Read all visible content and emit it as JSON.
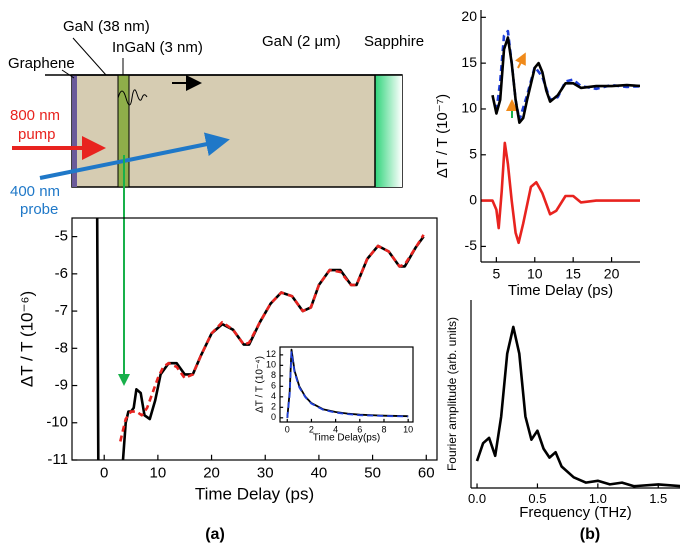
{
  "diagram": {
    "layer_labels": [
      "GaN (38 nm)",
      "InGaN (3 nm)",
      "GaN (2 μm)",
      "Sapphire",
      "Graphene"
    ],
    "pump": [
      "800 nm",
      "pump"
    ],
    "probe": [
      "400 nm",
      "probe"
    ]
  },
  "captions": {
    "a": "(a)",
    "b": "(b)"
  },
  "chart_data": [
    {
      "type": "line",
      "x_label": "Time Delay (ps)",
      "y_label": "ΔT / T (10⁻⁶)",
      "xlim": [
        -6,
        62
      ],
      "ylim": [
        -11,
        -4.5
      ],
      "xticks": [
        0,
        10,
        20,
        30,
        40,
        50,
        60
      ],
      "yticks": [
        -5,
        -6,
        -7,
        -8,
        -9,
        -10,
        -11
      ],
      "series": [
        {
          "color": "#000000",
          "dashed": false,
          "x": [
            -1.3,
            -1.1,
            2,
            3.5,
            4,
            4.5,
            5,
            5.5,
            6,
            6.8,
            7.5,
            8.5,
            9.5,
            10.5,
            12,
            13.5,
            15,
            16.5,
            18,
            20,
            22,
            24,
            26,
            27,
            29,
            31,
            33,
            35,
            37,
            38.5,
            40,
            42,
            44,
            46,
            47,
            49,
            51,
            53,
            55,
            56,
            58,
            59,
            59.5
          ],
          "values": [
            -4.5,
            -11,
            null,
            -11,
            -10.0,
            -9.7,
            -9.7,
            -9.6,
            -9.1,
            -9.2,
            -9.8,
            -9.9,
            -9.4,
            -8.7,
            -8.4,
            -8.4,
            -8.7,
            -8.7,
            -8.2,
            -7.6,
            -7.35,
            -7.5,
            -7.9,
            -7.9,
            -7.3,
            -6.8,
            -6.5,
            -6.6,
            -7.0,
            -6.9,
            -6.3,
            -5.9,
            -5.9,
            -6.3,
            -6.3,
            -5.6,
            -5.25,
            -5.4,
            -5.8,
            -5.8,
            -5.3,
            -5.1,
            -5.0
          ]
        },
        {
          "color": "#e8231f",
          "dashed": true,
          "x": [
            3,
            4,
            5,
            6,
            7,
            8,
            9,
            10,
            11,
            12,
            13.5,
            15,
            16.5,
            18,
            20,
            22,
            24,
            26,
            27,
            29,
            31,
            33,
            35,
            37,
            38.5,
            40,
            42,
            44,
            46,
            47,
            49,
            51,
            53,
            55,
            56,
            58,
            59.5
          ],
          "values": [
            -10.5,
            -9.9,
            -9.7,
            -9.7,
            -9.8,
            -9.6,
            -9.2,
            -8.8,
            -8.5,
            -8.4,
            -8.5,
            -8.8,
            -8.7,
            -8.2,
            -7.6,
            -7.3,
            -7.5,
            -7.9,
            -7.85,
            -7.3,
            -6.8,
            -6.5,
            -6.6,
            -7.0,
            -6.9,
            -6.3,
            -5.9,
            -5.95,
            -6.3,
            -6.3,
            -5.6,
            -5.25,
            -5.4,
            -5.8,
            -5.75,
            -5.3,
            -4.95
          ]
        }
      ]
    },
    {
      "type": "line",
      "x_label": "Time Delay(ps)",
      "y_label": "ΔT / T (10⁻⁴)",
      "xlim": [
        -0.6,
        10.4
      ],
      "ylim": [
        -0.8,
        13.5
      ],
      "xticks": [
        0,
        2,
        4,
        6,
        8,
        10
      ],
      "yticks": [
        0,
        2,
        4,
        6,
        8,
        10,
        12
      ],
      "series": [
        {
          "color": "#000000",
          "dashed": false,
          "x": [
            0,
            0.2,
            0.35,
            0.6,
            1,
            1.5,
            2,
            3,
            4,
            5,
            6,
            8,
            10
          ],
          "values": [
            0,
            5,
            13,
            9,
            6,
            4,
            2.8,
            1.6,
            1.1,
            0.8,
            0.6,
            0.4,
            0.3
          ]
        },
        {
          "color": "#1f3fd8",
          "dashed": true,
          "x": [
            0,
            0.2,
            0.35,
            0.6,
            1,
            1.5,
            2,
            3,
            4,
            5,
            6,
            8,
            10
          ],
          "values": [
            0,
            4.5,
            12.5,
            8.7,
            5.8,
            3.9,
            2.7,
            1.5,
            1.0,
            0.7,
            0.5,
            0.35,
            0.25
          ]
        }
      ]
    },
    {
      "type": "line",
      "x_label": "Time Delay (ps)",
      "y_label": "ΔT / T (10⁻⁷)",
      "xlim": [
        3,
        23.7
      ],
      "ylim": [
        -6.7,
        20.8
      ],
      "xticks": [
        5,
        10,
        15,
        20
      ],
      "yticks": [
        -5,
        0,
        5,
        10,
        15,
        20
      ],
      "series": [
        {
          "color": "#1f3fd8",
          "dashed": true,
          "x": [
            5,
            5.5,
            6,
            6.5,
            7,
            7.5,
            8,
            9,
            10,
            11,
            12,
            13,
            14,
            15,
            16,
            18,
            20,
            22,
            24
          ],
          "values": [
            9.8,
            13,
            18,
            18.5,
            15,
            11,
            8.8,
            11.5,
            14.6,
            13.5,
            11,
            11.3,
            13,
            13.2,
            12.5,
            12.2,
            12.6,
            12.4,
            12.5
          ]
        },
        {
          "color": "#000000",
          "dashed": false,
          "x": [
            4.5,
            5,
            5.5,
            6,
            6.5,
            7,
            7.5,
            8,
            8.5,
            9,
            10,
            10.5,
            11,
            11.5,
            12,
            13,
            14,
            15,
            16,
            18,
            20,
            22,
            24
          ],
          "values": [
            11.5,
            9.5,
            11,
            16.5,
            17.8,
            15,
            11,
            8.5,
            9,
            11,
            14.5,
            15,
            14,
            12,
            10.8,
            11.5,
            12.8,
            12.8,
            12.3,
            12.5,
            12.5,
            12.6,
            12.5
          ]
        },
        {
          "color": "#e8231f",
          "dashed": false,
          "x": [
            3,
            4.5,
            5,
            5.3,
            5.7,
            6.1,
            6.5,
            7,
            7.5,
            7.9,
            8.5,
            9.5,
            10.2,
            11,
            12,
            12.8,
            14,
            15,
            16,
            18,
            20,
            24
          ],
          "values": [
            0,
            0,
            -1,
            -3,
            1,
            6.3,
            4,
            0,
            -3.5,
            -4.6,
            -2.5,
            1.5,
            2.0,
            0.8,
            -1.5,
            -1.1,
            0.5,
            0.5,
            -0.2,
            0,
            0,
            0
          ]
        }
      ]
    },
    {
      "type": "line",
      "x_label": "Frequency (THz)",
      "y_label": "Fourier amplitude (arb. units)",
      "xlim": [
        -0.05,
        1.68
      ],
      "ylim": [
        0,
        1.05
      ],
      "xticks": [
        {
          "value": 0,
          "label": "0.0"
        },
        0.5,
        {
          "value": 1,
          "label": "1.0"
        },
        1.5
      ],
      "yticks": [],
      "series": [
        {
          "color": "#000000",
          "dashed": false,
          "x": [
            0,
            0.05,
            0.1,
            0.15,
            0.2,
            0.25,
            0.3,
            0.35,
            0.4,
            0.45,
            0.5,
            0.55,
            0.6,
            0.65,
            0.7,
            0.8,
            0.9,
            1.0,
            1.1,
            1.2,
            1.3,
            1.5,
            1.7
          ],
          "values": [
            0.15,
            0.25,
            0.28,
            0.18,
            0.4,
            0.75,
            0.9,
            0.75,
            0.4,
            0.27,
            0.32,
            0.22,
            0.17,
            0.2,
            0.12,
            0.06,
            0.03,
            0.04,
            0.02,
            0.03,
            0.01,
            0.02,
            0.01
          ]
        }
      ]
    }
  ]
}
